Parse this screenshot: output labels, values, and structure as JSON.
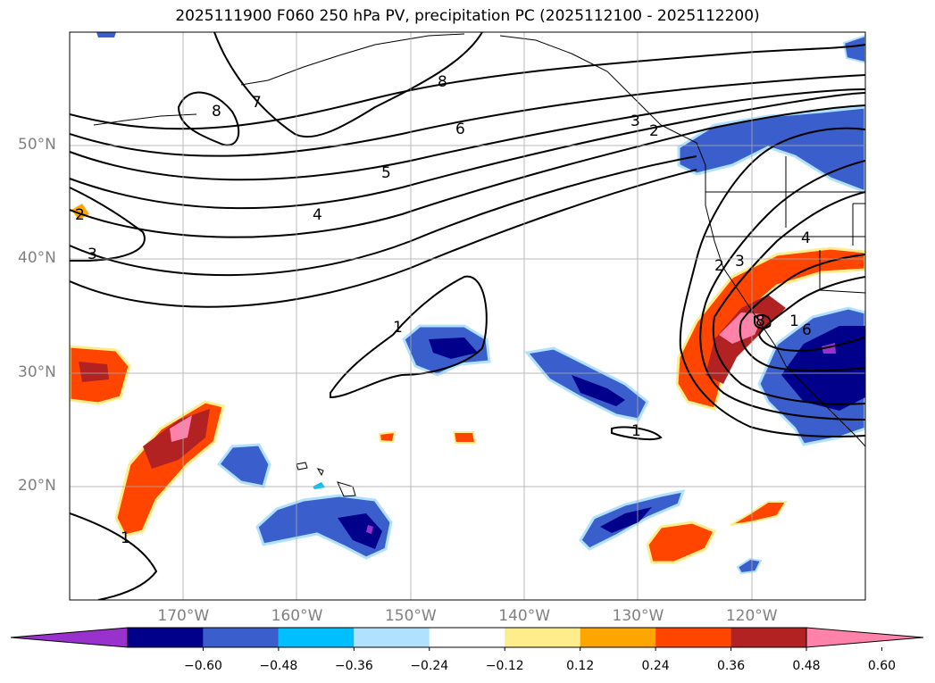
{
  "title": "2025111900 F060 250 hPa PV, precipitation PC (2025112100 - 2025112200)",
  "map": {
    "lat_labels": [
      {
        "label": "50°N",
        "lat": 50
      },
      {
        "label": "40°N",
        "lat": 40
      },
      {
        "label": "30°N",
        "lat": 30
      },
      {
        "label": "20°N",
        "lat": 20
      }
    ],
    "lon_labels": [
      {
        "label": "170°W",
        "lon": -170
      },
      {
        "label": "160°W",
        "lon": -160
      },
      {
        "label": "150°W",
        "lon": -150
      },
      {
        "label": "140°W",
        "lon": -140
      },
      {
        "label": "130°W",
        "lon": -130
      },
      {
        "label": "120°W",
        "lon": -120
      }
    ],
    "gridlines": true,
    "pv_contour_labels": [
      "1",
      "2",
      "3",
      "4",
      "5",
      "6",
      "7",
      "8"
    ]
  },
  "colorbar": {
    "colors": [
      "#9932cc",
      "#00008b",
      "#3a5fcd",
      "#00bfff",
      "#b0e2ff",
      "#ffffff",
      "#ffec8b",
      "#ffa500",
      "#ff4500",
      "#b22222",
      "#ff82ab"
    ],
    "tick_labels": [
      "−0.60",
      "−0.48",
      "−0.36",
      "−0.24",
      "−0.12",
      "0.12",
      "0.24",
      "0.36",
      "0.48",
      "0.60"
    ],
    "extend": "both"
  }
}
